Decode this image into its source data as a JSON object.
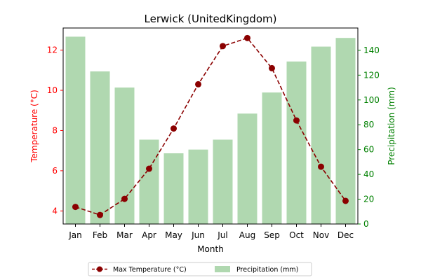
{
  "chart_data": {
    "type": "bar+line",
    "title": "Lerwick (UnitedKingdom)",
    "xlabel": "Month",
    "ylabel_left": "Temperature (°C)",
    "ylabel_right": "Precipitation (mm)",
    "categories": [
      "Jan",
      "Feb",
      "Mar",
      "Apr",
      "May",
      "Jun",
      "Jul",
      "Aug",
      "Sep",
      "Oct",
      "Nov",
      "Dec"
    ],
    "ylim_left": [
      3.35,
      13.1
    ],
    "ylim_right": [
      0,
      158
    ],
    "yticks_left": [
      4,
      6,
      8,
      10,
      12
    ],
    "yticks_right": [
      0,
      20,
      40,
      60,
      80,
      100,
      120,
      140
    ],
    "grid": false,
    "legend_position": "bottom-center",
    "series": [
      {
        "name": "Max Temperature (°C)",
        "type": "line",
        "axis": "left",
        "color": "#8b0000",
        "style": "dashed",
        "marker": "circle",
        "values": [
          4.2,
          3.8,
          4.6,
          6.1,
          8.1,
          10.3,
          12.2,
          12.6,
          11.1,
          8.5,
          6.2,
          4.5
        ]
      },
      {
        "name": "Precipitation (mm)",
        "type": "bar",
        "axis": "right",
        "color": "#b0d8b0",
        "values": [
          151,
          123,
          110,
          68,
          57,
          60,
          68,
          89,
          106,
          131,
          143,
          150
        ]
      }
    ]
  },
  "colors": {
    "left_axis": "#ff0000",
    "right_axis": "#008000",
    "axis_line": "#000000"
  }
}
